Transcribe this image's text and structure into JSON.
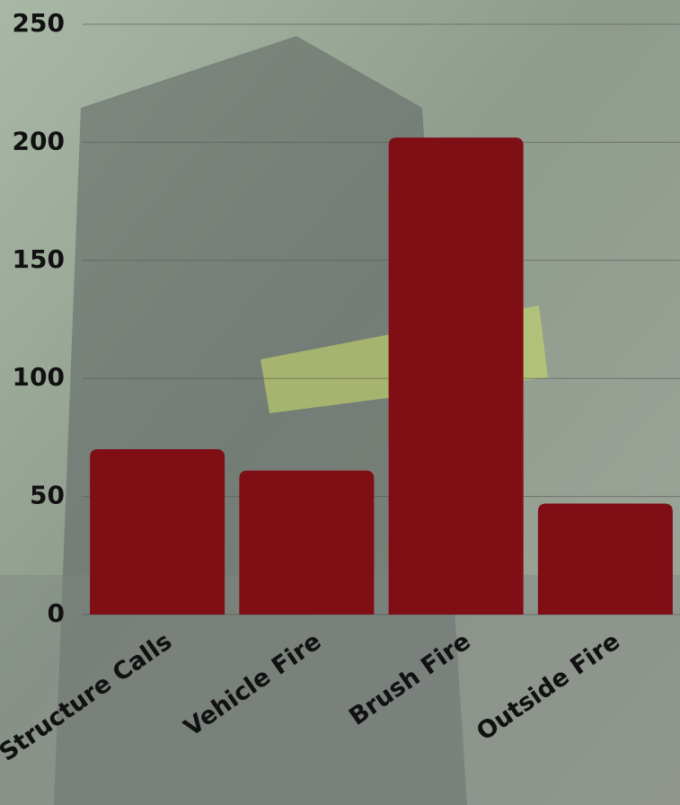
{
  "chart_data": {
    "type": "bar",
    "categories": [
      "Structure Calls",
      "Vehicle Fire",
      "Brush Fire",
      "Outside Fire"
    ],
    "values": [
      70,
      61,
      202,
      47
    ],
    "color": "#7f0e15",
    "ylim": [
      0,
      250
    ],
    "yticks": [
      0,
      50,
      100,
      150,
      200,
      250
    ],
    "grid": true
  }
}
